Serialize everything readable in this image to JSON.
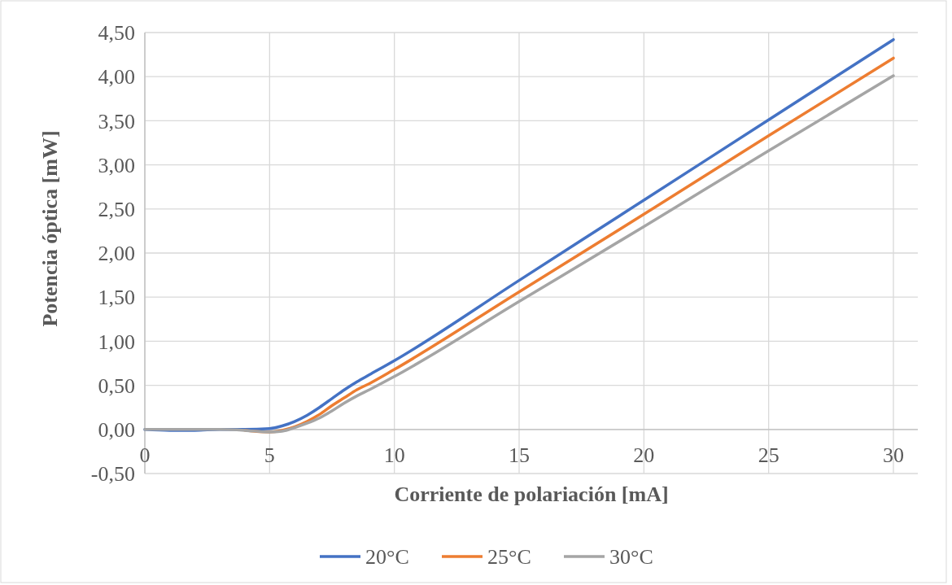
{
  "chart_data": {
    "type": "line",
    "xlabel": "Corriente de polariación [mA]",
    "ylabel": "Potencia óptica [mW]",
    "x": [
      0,
      1,
      2,
      3,
      4,
      5,
      5.5,
      6,
      6.5,
      7,
      7.5,
      8,
      8.5,
      9,
      10,
      15,
      20,
      25,
      30
    ],
    "series": [
      {
        "name": "20°C",
        "color": "#4472c4",
        "values": [
          0,
          -0.01,
          -0.01,
          0,
          0,
          0.01,
          0.04,
          0.09,
          0.16,
          0.25,
          0.35,
          0.45,
          0.54,
          0.62,
          0.78,
          1.69,
          2.6,
          3.51,
          4.42
        ]
      },
      {
        "name": "25°C",
        "color": "#ed7d31",
        "values": [
          null,
          null,
          null,
          null,
          -0.01,
          -0.03,
          -0.01,
          0.03,
          0.09,
          0.17,
          0.27,
          0.36,
          0.45,
          0.52,
          0.68,
          1.56,
          2.44,
          3.33,
          4.21
        ]
      },
      {
        "name": "30°C",
        "color": "#a5a5a5",
        "values": [
          0,
          0,
          0,
          0,
          -0.01,
          -0.03,
          -0.02,
          0.02,
          0.07,
          0.13,
          0.21,
          0.3,
          0.38,
          0.45,
          0.6,
          1.45,
          2.3,
          3.16,
          4.01
        ]
      }
    ],
    "xlim": [
      0,
      30
    ],
    "xticks": [
      0,
      5,
      10,
      15,
      20,
      25,
      30
    ],
    "ylim": [
      -0.5,
      4.5
    ],
    "yticks": [
      {
        "value": -0.5,
        "label": "-0,50"
      },
      {
        "value": 0,
        "label": "0,00"
      },
      {
        "value": 0.5,
        "label": "0,50"
      },
      {
        "value": 1,
        "label": "1,00"
      },
      {
        "value": 1.5,
        "label": "1,50"
      },
      {
        "value": 2,
        "label": "2,00"
      },
      {
        "value": 2.5,
        "label": "2,50"
      },
      {
        "value": 3,
        "label": "3,00"
      },
      {
        "value": 3.5,
        "label": "3,50"
      },
      {
        "value": 4,
        "label": "4,00"
      },
      {
        "value": 4.5,
        "label": "4,50"
      }
    ],
    "grid": true,
    "legend": "bottom",
    "marker": "none",
    "line_style": "solid"
  }
}
